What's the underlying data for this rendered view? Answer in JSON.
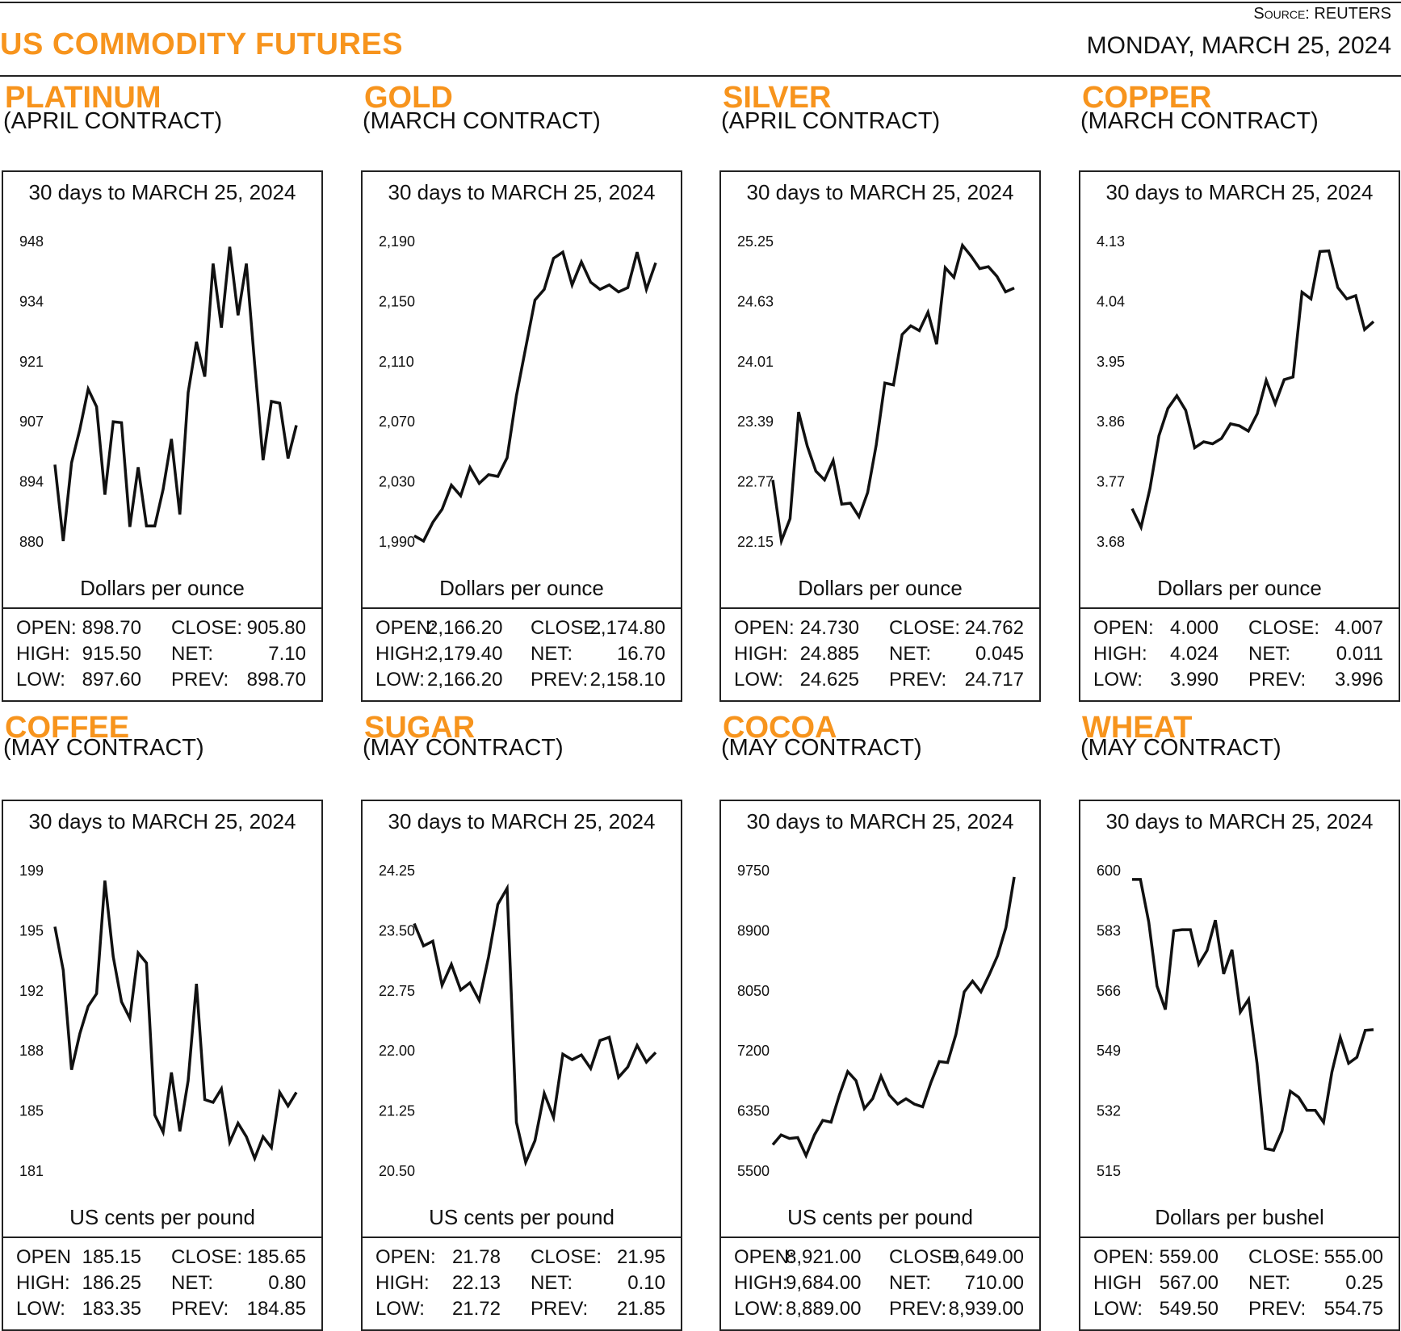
{
  "header": {
    "title": "US COMMODITY FUTURES",
    "source_label": "Source:",
    "source_value": "REUTERS",
    "date": "MONDAY, MARCH 25, 2024"
  },
  "colors": {
    "accent": "#f7941d",
    "line": "#111111",
    "border": "#222222"
  },
  "panels": [
    {
      "name": "PLATINUM",
      "contract": "(APRIL CONTRACT)",
      "stats": [
        [
          "OPEN:",
          "898.70",
          "CLOSE:",
          "905.80"
        ],
        [
          "HIGH:",
          "915.50",
          "NET:",
          "7.10"
        ],
        [
          "LOW:",
          "897.60",
          "PREV:",
          "898.70"
        ]
      ]
    },
    {
      "name": "GOLD",
      "contract": "(MARCH CONTRACT)",
      "stats": [
        [
          "OPEN:",
          "2,166.20",
          "CLOSE:",
          "2,174.80"
        ],
        [
          "HIGH:",
          "2,179.40",
          "NET:",
          "16.70"
        ],
        [
          "LOW:",
          "2,166.20",
          "PREV:",
          "2,158.10"
        ]
      ]
    },
    {
      "name": "SILVER",
      "contract": "(APRIL CONTRACT)",
      "stats": [
        [
          "OPEN:",
          "24.730",
          "CLOSE:",
          "24.762"
        ],
        [
          "HIGH:",
          "24.885",
          "NET:",
          "0.045"
        ],
        [
          "LOW:",
          "24.625",
          "PREV:",
          "24.717"
        ]
      ]
    },
    {
      "name": "COPPER",
      "contract": "(MARCH CONTRACT)",
      "stats": [
        [
          "OPEN:",
          "4.000",
          "CLOSE:",
          "4.007"
        ],
        [
          "HIGH:",
          "4.024",
          "NET:",
          "0.011"
        ],
        [
          "LOW:",
          "3.990",
          "PREV:",
          "3.996"
        ]
      ]
    },
    {
      "name": "COFFEE",
      "contract": "(MAY CONTRACT)",
      "stats": [
        [
          "OPEN",
          "185.15",
          "CLOSE:",
          "185.65"
        ],
        [
          "HIGH:",
          "186.25",
          "NET:",
          "0.80"
        ],
        [
          "LOW:",
          "183.35",
          "PREV:",
          "184.85"
        ]
      ]
    },
    {
      "name": "SUGAR",
      "contract": "(MAY CONTRACT)",
      "stats": [
        [
          "OPEN:",
          "21.78",
          "CLOSE:",
          "21.95"
        ],
        [
          "HIGH:",
          "22.13",
          "NET:",
          "0.10"
        ],
        [
          "LOW:",
          "21.72",
          "PREV:",
          "21.85"
        ]
      ]
    },
    {
      "name": "COCOA",
      "contract": "(MAY CONTRACT)",
      "stats": [
        [
          "OPEN:",
          "8,921.00",
          "CLOSE:",
          "9,649.00"
        ],
        [
          "HIGH:",
          "9,684.00",
          "NET:",
          "710.00"
        ],
        [
          "LOW:",
          "8,889.00",
          "PREV:",
          "8,939.00"
        ]
      ]
    },
    {
      "name": "WHEAT",
      "contract": "(MAY CONTRACT)",
      "stats": [
        [
          "OPEN:",
          "559.00",
          "CLOSE:",
          "555.00"
        ],
        [
          "HIGH",
          "567.00",
          "NET:",
          "0.25"
        ],
        [
          "LOW:",
          "549.50",
          "PREV:",
          "554.75"
        ]
      ]
    }
  ],
  "chart_data": [
    {
      "type": "line",
      "title": "30 days to MARCH 25, 2024",
      "ylabel": "Dollars per ounce",
      "y_ticks": [
        "948",
        "934",
        "921",
        "907",
        "894",
        "880"
      ],
      "ylim": [
        880,
        948
      ],
      "grid": false,
      "values": [
        897.5,
        880.2,
        897.9,
        905.5,
        914.6,
        910.6,
        890.7,
        907.2,
        907.0,
        883.4,
        896.9,
        883.6,
        883.6,
        891.9,
        903.3,
        886.2,
        913.8,
        925.3,
        917.4,
        943.0,
        928.5,
        946.8,
        931.3,
        943.0,
        920.2,
        898.5,
        911.8,
        911.4,
        898.9,
        906.4
      ]
    },
    {
      "type": "line",
      "title": "30 days to MARCH 25, 2024",
      "ylabel": "Dollars per ounce",
      "y_ticks": [
        "2,190",
        "2,150",
        "2,110",
        "2,070",
        "2,030",
        "1,990"
      ],
      "ylim": [
        1990,
        2190
      ],
      "grid": false,
      "values": [
        1994.1,
        1990.6,
        2003.0,
        2011.8,
        2027.8,
        2020.7,
        2039.6,
        2029.0,
        2034.8,
        2033.6,
        2046.0,
        2087.3,
        2119.2,
        2151.0,
        2158.1,
        2178.8,
        2182.9,
        2161.1,
        2176.4,
        2162.9,
        2158.1,
        2161.1,
        2156.4,
        2159.3,
        2182.9,
        2158.1,
        2175.8
      ]
    },
    {
      "type": "line",
      "title": "30 days to MARCH 25, 2024",
      "ylabel": "Dollars per ounce",
      "y_ticks": [
        "25.25",
        "24.63",
        "24.01",
        "23.39",
        "22.77",
        "22.15"
      ],
      "ylim": [
        22.15,
        25.25
      ],
      "grid": false,
      "values": [
        22.79,
        22.16,
        22.39,
        23.49,
        23.14,
        22.88,
        22.79,
        22.99,
        22.54,
        22.55,
        22.41,
        22.66,
        23.15,
        23.79,
        23.77,
        24.29,
        24.38,
        24.33,
        24.52,
        24.19,
        24.98,
        24.88,
        25.21,
        25.1,
        24.97,
        24.99,
        24.89,
        24.73,
        24.77
      ]
    },
    {
      "type": "line",
      "title": "30 days to MARCH 25, 2024",
      "ylabel": "Dollars per ounce",
      "y_ticks": [
        "4.13",
        "4.04",
        "3.95",
        "3.86",
        "3.77",
        "3.68"
      ],
      "ylim": [
        3.68,
        4.13
      ],
      "grid": false,
      "values": [
        3.73,
        3.702,
        3.76,
        3.839,
        3.88,
        3.899,
        3.877,
        3.821,
        3.83,
        3.827,
        3.835,
        3.857,
        3.854,
        3.846,
        3.872,
        3.922,
        3.887,
        3.923,
        3.927,
        4.054,
        4.044,
        4.115,
        4.116,
        4.061,
        4.044,
        4.049,
        3.998,
        4.01
      ]
    },
    {
      "type": "line",
      "title": "30 days to MARCH 25, 2024",
      "ylabel": "US cents per pound",
      "y_ticks": [
        "199",
        "195",
        "192",
        "188",
        "185",
        "181"
      ],
      "ylim": [
        181,
        199
      ],
      "grid": false,
      "values": [
        195.64,
        193.04,
        187.07,
        189.24,
        190.87,
        191.63,
        198.4,
        193.85,
        191.14,
        190.16,
        194.07,
        193.47,
        184.36,
        183.33,
        186.91,
        183.38,
        186.42,
        192.22,
        185.28,
        185.12,
        185.93,
        182.73,
        183.87,
        183.06,
        181.76,
        183.06,
        182.41,
        185.72,
        184.9,
        185.72
      ]
    },
    {
      "type": "line",
      "title": "30 days to MARCH 25, 2024",
      "ylabel": "US cents per pound",
      "y_ticks": [
        "24.25",
        "23.50",
        "22.75",
        "22.00",
        "21.25",
        "20.50"
      ],
      "ylim": [
        20.5,
        24.25
      ],
      "grid": false,
      "values": [
        23.59,
        23.31,
        23.37,
        22.82,
        23.08,
        22.76,
        22.85,
        22.63,
        23.17,
        23.83,
        24.03,
        21.11,
        20.61,
        20.88,
        21.47,
        21.17,
        21.96,
        21.89,
        21.95,
        21.78,
        22.13,
        22.17,
        21.67,
        21.8,
        22.07,
        21.86,
        21.98
      ]
    },
    {
      "type": "line",
      "title": "30 days to MARCH 25, 2024",
      "ylabel": "US cents per pound",
      "y_ticks": [
        "9750",
        "8900",
        "8050",
        "7200",
        "6350",
        "5500"
      ],
      "ylim": [
        5500,
        9750
      ],
      "grid": false,
      "values": [
        5872,
        6012,
        5961,
        5974,
        5718,
        6012,
        6217,
        6192,
        6576,
        6908,
        6780,
        6384,
        6524,
        6844,
        6576,
        6448,
        6524,
        6448,
        6409,
        6755,
        7049,
        7036,
        7433,
        8035,
        8188,
        8035,
        8278,
        8547,
        8944,
        9660
      ]
    },
    {
      "type": "line",
      "title": "30 days to MARCH 25, 2024",
      "ylabel": "Dollars per bushel",
      "y_ticks": [
        "600",
        "583",
        "566",
        "549",
        "532",
        "515"
      ],
      "ylim": [
        515,
        600
      ],
      "grid": false,
      "values": [
        597.5,
        597.5,
        585.5,
        567.3,
        560.7,
        583.0,
        583.3,
        583.3,
        573.5,
        577.4,
        586.0,
        570.8,
        577.6,
        560.0,
        563.6,
        545.5,
        521.4,
        520.9,
        526.3,
        537.6,
        535.9,
        532.2,
        532.2,
        528.8,
        543.0,
        552.8,
        545.5,
        547.2,
        554.8,
        555.0
      ]
    }
  ]
}
